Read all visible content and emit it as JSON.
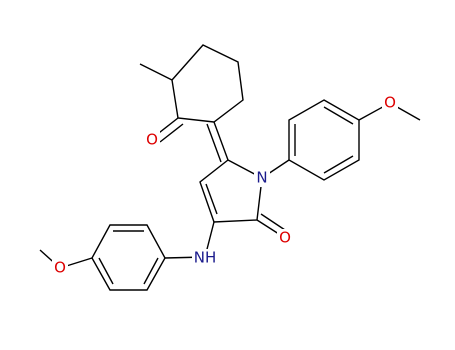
{
  "atoms": [
    {
      "label": "O"
    },
    {
      "label": "N"
    },
    {
      "label": "O"
    },
    {
      "label": "NH"
    },
    {
      "label": "O"
    },
    {
      "label": "O"
    }
  ]
}
